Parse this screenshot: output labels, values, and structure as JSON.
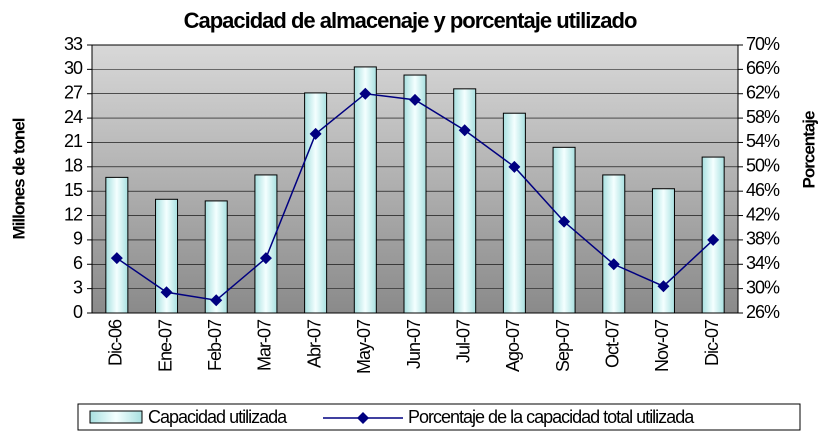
{
  "chart_data": {
    "type": "bar-line",
    "title": "Capacidad de almacenaje y porcentaje utilizado",
    "y_label": "Millones de tonel",
    "y2_label": "Porcentaje",
    "categories": [
      "Dic-06",
      "Ene-07",
      "Feb-07",
      "Mar-07",
      "Abr-07",
      "May-07",
      "Jun-07",
      "Jul-07",
      "Ago-07",
      "Sep-07",
      "Oct-07",
      "Nov-07",
      "Dic-07"
    ],
    "series": [
      {
        "name": "Capacidad utilizada",
        "type": "bar",
        "color": "#d8f8f8",
        "values": [
          16.7,
          14.0,
          13.8,
          17.0,
          27.1,
          30.3,
          29.3,
          27.6,
          24.6,
          20.4,
          17.0,
          15.3,
          19.2
        ]
      },
      {
        "name": "Porcentaje de la capacidad total utilizada",
        "type": "line",
        "axis": "y2",
        "color": "#000080",
        "values": [
          35.0,
          29.4,
          28.1,
          35.0,
          55.4,
          62.0,
          61.0,
          56.0,
          50.0,
          41.0,
          34.0,
          30.4,
          38.0
        ]
      }
    ],
    "ylim": [
      0,
      33
    ],
    "yticks": [
      0,
      3,
      6,
      9,
      12,
      15,
      18,
      21,
      24,
      27,
      30,
      33
    ],
    "y2lim": [
      26,
      70
    ],
    "y2ticks": [
      {
        "value": 26,
        "label": "26%"
      },
      {
        "value": 30,
        "label": "30%"
      },
      {
        "value": 34,
        "label": "34%"
      },
      {
        "value": 38,
        "label": "38%"
      },
      {
        "value": 42,
        "label": "42%"
      },
      {
        "value": 46,
        "label": "46%"
      },
      {
        "value": 50,
        "label": "50%"
      },
      {
        "value": 54,
        "label": "54%"
      },
      {
        "value": 58,
        "label": "58%"
      },
      {
        "value": 62,
        "label": "62%"
      },
      {
        "value": 66,
        "label": "66%"
      },
      {
        "value": 70,
        "label": "70%"
      }
    ],
    "grid": true,
    "legend": "bottom"
  }
}
